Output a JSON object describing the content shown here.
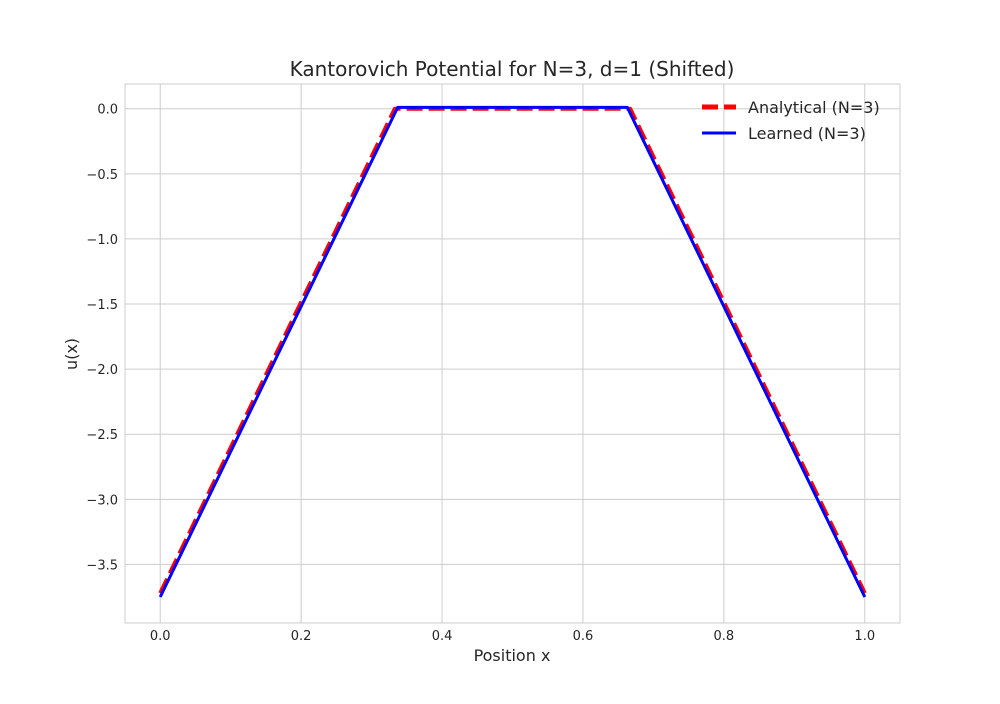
{
  "chart_data": {
    "type": "line",
    "title": "Kantorovich Potential for N=3, d=1 (Shifted)",
    "xlabel": "Position x",
    "ylabel": "u(x)",
    "xlim": [
      -0.05,
      1.05
    ],
    "ylim": [
      -3.95,
      0.19
    ],
    "xticks": [
      0.0,
      0.2,
      0.4,
      0.6,
      0.8,
      1.0
    ],
    "xtick_labels": [
      "0.0",
      "0.2",
      "0.4",
      "0.6",
      "0.8",
      "1.0"
    ],
    "yticks": [
      0.0,
      -0.5,
      -1.0,
      -1.5,
      -2.0,
      -2.5,
      -3.0,
      -3.5
    ],
    "ytick_labels": [
      "0.0",
      "−0.5",
      "−1.0",
      "−1.5",
      "−2.0",
      "−2.5",
      "−3.0",
      "−3.5"
    ],
    "grid": true,
    "legend_position": "top-right",
    "series": [
      {
        "name": "Analytical (N=3)",
        "color": "#ff0000",
        "style": "dashed",
        "x": [
          0.0,
          0.333,
          0.667,
          1.0
        ],
        "y": [
          -3.72,
          0.0,
          0.0,
          -3.72
        ]
      },
      {
        "name": "Learned (N=3)",
        "color": "#0000ff",
        "style": "solid",
        "x": [
          0.0,
          0.337,
          0.663,
          1.0
        ],
        "y": [
          -3.75,
          0.01,
          0.01,
          -3.75
        ]
      }
    ]
  }
}
